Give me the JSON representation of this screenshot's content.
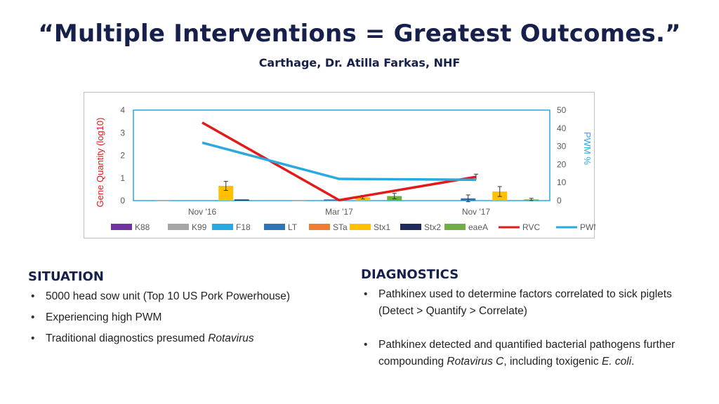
{
  "slide": {
    "title": "“Multiple Interventions = Greatest Outcomes.”",
    "subtitle": "Carthage, Dr. Atilla Farkas, NHF"
  },
  "situation": {
    "heading": "SITUATION",
    "items": [
      {
        "parts": [
          {
            "text": "5000 head sow unit (Top 10 US Pork Powerhouse)",
            "italic": false
          }
        ]
      },
      {
        "parts": [
          {
            "text": "Experiencing high PWM",
            "italic": false
          }
        ]
      },
      {
        "parts": [
          {
            "text": "Traditional diagnostics presumed ",
            "italic": false
          },
          {
            "text": "Rotavirus",
            "italic": true
          }
        ]
      }
    ]
  },
  "diagnostics": {
    "heading": "DIAGNOSTICS",
    "items": [
      {
        "parts": [
          {
            "text": "Pathkinex used to determine factors correlated to sick piglets (Detect > Quantify > Correlate)",
            "italic": false
          }
        ]
      },
      {
        "parts": [
          {
            "text": "Pathkinex detected and quantified bacterial pathogens further compounding ",
            "italic": false
          },
          {
            "text": "Rotavirus C",
            "italic": true
          },
          {
            "text": ", including toxigenic ",
            "italic": false
          },
          {
            "text": "E. coli",
            "italic": true
          },
          {
            "text": ".",
            "italic": false
          }
        ]
      }
    ]
  },
  "chart_data": {
    "type": "bar",
    "categories": [
      "Nov '16",
      "Mar '17",
      "Nov '17"
    ],
    "ylabel": "Gene Quantity (log10)",
    "y2label": "PWM %",
    "ylim": [
      0,
      4
    ],
    "y2lim": [
      0,
      50
    ],
    "yticks": [
      "0",
      "1",
      "2",
      "3",
      "4"
    ],
    "y2ticks": [
      "0",
      "10",
      "20",
      "30",
      "40",
      "50"
    ],
    "grid": false,
    "legend_position": "bottom",
    "bar_series": [
      {
        "name": "K88",
        "color": "#7030a0",
        "values": [
          0,
          0,
          0
        ],
        "errors": [
          0,
          0,
          0
        ]
      },
      {
        "name": "K99",
        "color": "#a6a6a6",
        "values": [
          0.02,
          0.02,
          0
        ],
        "errors": [
          0,
          0,
          0
        ]
      },
      {
        "name": "F18",
        "color": "#27aae1",
        "values": [
          0,
          0,
          0
        ],
        "errors": [
          0,
          0,
          0
        ]
      },
      {
        "name": "LT",
        "color": "#2e75b6",
        "values": [
          0,
          0.05,
          0.1
        ],
        "errors": [
          0,
          0,
          0.15
        ]
      },
      {
        "name": "STa",
        "color": "#ed7d31",
        "values": [
          0,
          0,
          0
        ],
        "errors": [
          0,
          0,
          0
        ]
      },
      {
        "name": "Stx1",
        "color": "#ffc000",
        "values": [
          0.65,
          0.15,
          0.4
        ],
        "errors": [
          0.2,
          0.08,
          0.22
        ]
      },
      {
        "name": "Stx2",
        "color": "#1f2a5c",
        "values": [
          0.05,
          0,
          0
        ],
        "errors": [
          0,
          0,
          0
        ]
      },
      {
        "name": "eaeA",
        "color": "#70ad47",
        "values": [
          0,
          0.2,
          0.05
        ],
        "errors": [
          0,
          0.12,
          0.05
        ]
      }
    ],
    "line_series": [
      {
        "name": "RVC",
        "color": "#e31a1a",
        "axis": "left",
        "values": [
          3.45,
          0.02,
          1.05
        ],
        "errors": [
          0,
          0,
          0.12
        ]
      },
      {
        "name": "PWM",
        "color": "#29a9e0",
        "axis": "right",
        "values": [
          32,
          12,
          11.5
        ]
      }
    ]
  }
}
